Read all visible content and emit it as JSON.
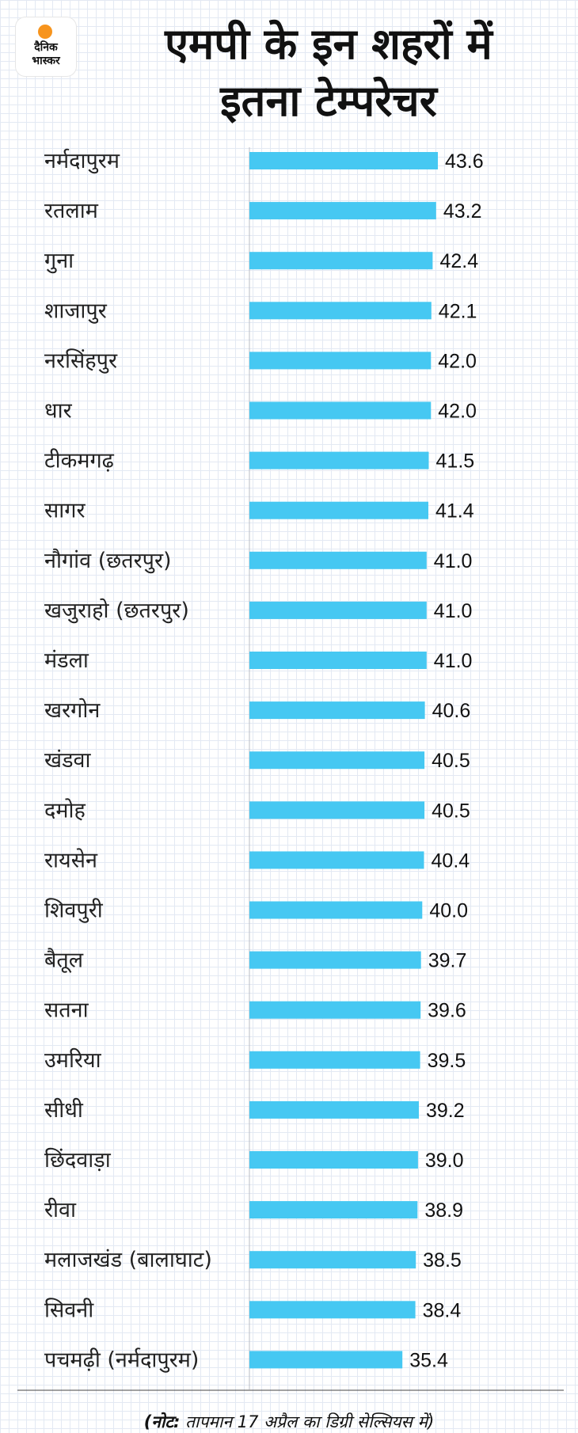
{
  "logo": {
    "line1": "दैनिक",
    "line2": "भास्कर"
  },
  "title": {
    "line1": "एमपी के इन शहरों में",
    "line2": "इतना टेम्परेचर"
  },
  "note": {
    "prefix": "(नोट:",
    "text": "तापमान 17 अप्रैल का डिग्री सेल्सियस में)"
  },
  "colors": {
    "bar": "#46c8f2",
    "axis": "#b8bcc4",
    "background": "#ffffff",
    "logo_sun": "#f7941d"
  },
  "chart_data": {
    "type": "bar",
    "orientation": "horizontal",
    "title": "एमपी के इन शहरों में इतना टेम्परेचर",
    "xlabel": "",
    "ylabel": "",
    "categories": [
      "नर्मदापुरम",
      "रतलाम",
      "गुना",
      "शाजापुर",
      "नरसिंहपुर",
      "धार",
      "टीकमगढ़",
      "सागर",
      "नौगांव (छतरपुर)",
      "खजुराहो (छतरपुर)",
      "मंडला",
      "खरगोन",
      "खंडवा",
      "दमोह",
      "रायसेन",
      "शिवपुरी",
      "बैतूल",
      "सतना",
      "उमरिया",
      "सीधी",
      "छिंदवाड़ा",
      "रीवा",
      "मलाजखंड (बालाघाट)",
      "सिवनी",
      "पचमढ़ी (नर्मदापुरम)"
    ],
    "values": [
      43.6,
      43.2,
      42.4,
      42.1,
      42.0,
      42.0,
      41.5,
      41.4,
      41.0,
      41.0,
      41.0,
      40.6,
      40.5,
      40.5,
      40.4,
      40.0,
      39.7,
      39.6,
      39.5,
      39.2,
      39.0,
      38.9,
      38.5,
      38.4,
      35.4
    ],
    "value_labels": [
      "43.6",
      "43.2",
      "42.4",
      "42.1",
      "42.0",
      "42.0",
      "41.5",
      "41.4",
      "41.0",
      "41.0",
      "41.0",
      "40.6",
      "40.5",
      "40.5",
      "40.4",
      "40.0",
      "39.7",
      "39.6",
      "39.5",
      "39.2",
      "39.0",
      "38.9",
      "38.5",
      "38.4",
      "35.4"
    ],
    "xlim": [
      0,
      43.6
    ],
    "grid": true,
    "legend": "none"
  }
}
